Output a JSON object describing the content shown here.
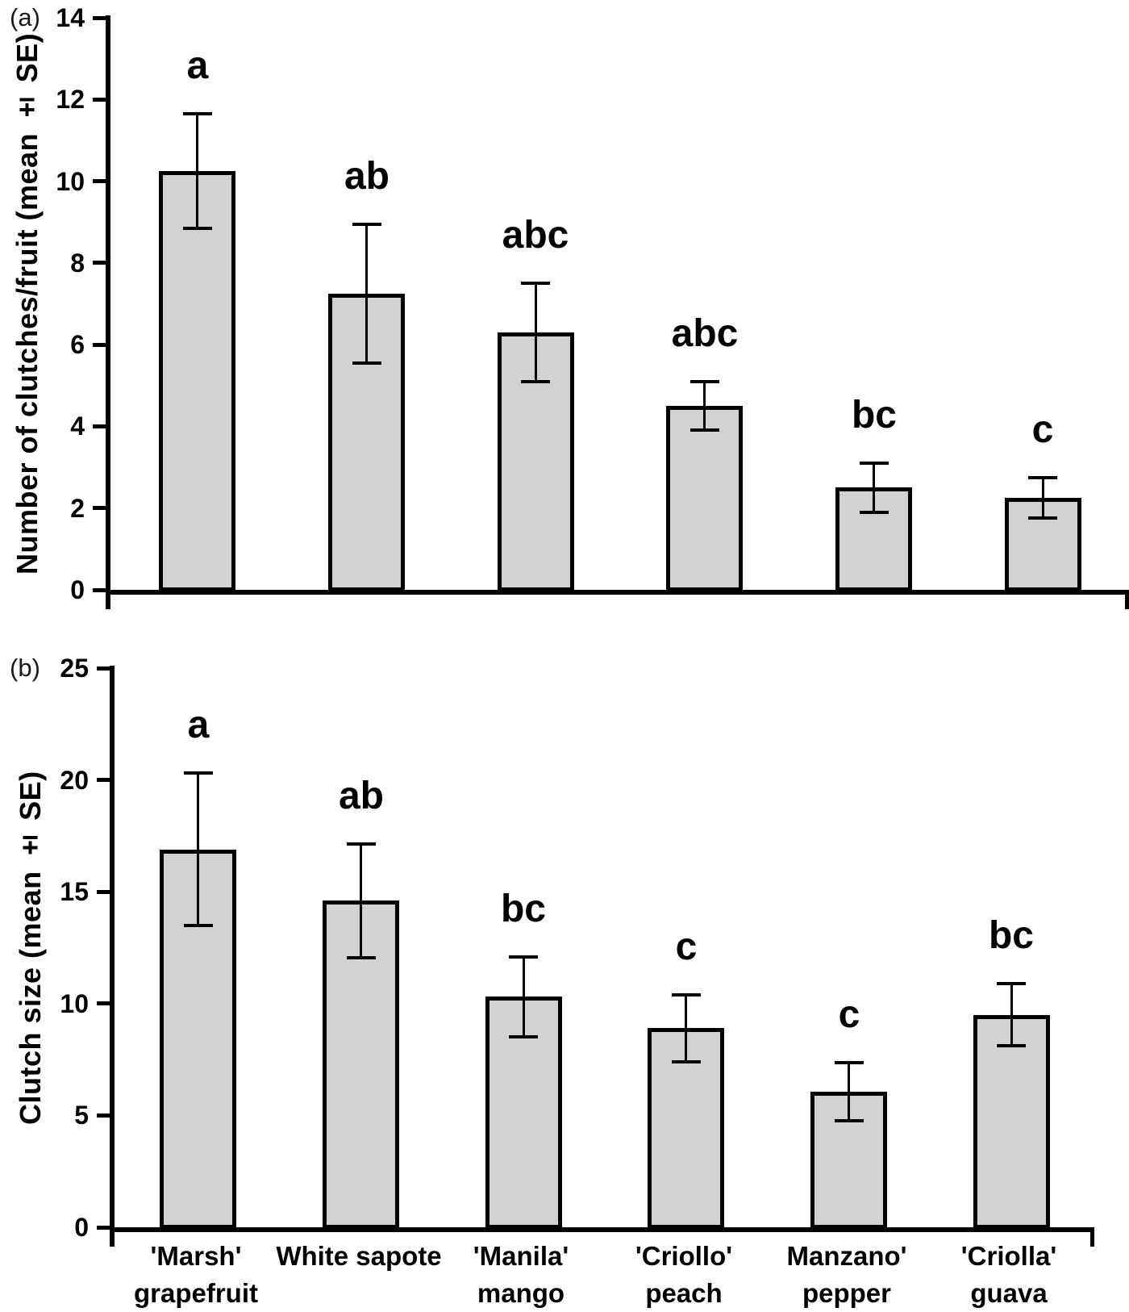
{
  "chart_data": [
    {
      "type": "bar",
      "panel_label": "(a)",
      "ylabel": "Number of clutches/fruit (mean ± SE)",
      "xlabel": "",
      "ylim": [
        0,
        14
      ],
      "yticks": [
        0,
        2,
        4,
        6,
        8,
        10,
        12,
        14
      ],
      "grid": false,
      "legend_position": "none",
      "bar_fill": "#d2d2d2",
      "bar_border": "#000000",
      "categories": [
        "'Marsh' grapefruit",
        "White sapote",
        "'Manila' mango",
        "'Criollo' peach",
        "Manzano' pepper",
        "'Criolla' guava"
      ],
      "series": [
        {
          "name": "Number of clutches per fruit (mean)",
          "values": [
            10.25,
            7.25,
            6.3,
            4.5,
            2.5,
            2.25
          ],
          "se": [
            1.4,
            1.7,
            1.2,
            0.6,
            0.6,
            0.5
          ]
        }
      ],
      "sig_letters": [
        "a",
        "ab",
        "abc",
        "abc",
        "bc",
        "c"
      ]
    },
    {
      "type": "bar",
      "panel_label": "(b)",
      "ylabel": "Clutch size (mean ± SE)",
      "xlabel": "",
      "ylim": [
        0,
        25
      ],
      "yticks": [
        0,
        5,
        10,
        15,
        20,
        25
      ],
      "grid": false,
      "legend_position": "none",
      "bar_fill": "#d2d2d2",
      "bar_border": "#000000",
      "categories": [
        "'Marsh' grapefruit",
        "White sapote",
        "'Manila' mango",
        "'Criollo' peach",
        "Manzano' pepper",
        "'Criolla' guava"
      ],
      "series": [
        {
          "name": "Clutch size (mean)",
          "values": [
            16.9,
            14.6,
            10.3,
            8.9,
            6.05,
            9.5
          ],
          "se": [
            3.4,
            2.55,
            1.8,
            1.5,
            1.3,
            1.4
          ]
        }
      ],
      "sig_letters": [
        "a",
        "ab",
        "bc",
        "c",
        "c",
        "bc"
      ]
    }
  ],
  "category_axis_labels": [
    [
      "'Marsh'",
      "grapefruit"
    ],
    [
      "White sapote"
    ],
    [
      "'Manila'",
      "mango"
    ],
    [
      "'Criollo'",
      "peach"
    ],
    [
      "Manzano'",
      "pepper"
    ],
    [
      "'Criolla'",
      "guava"
    ]
  ],
  "category_slugs": [
    "marsh-grapefruit",
    "white-sapote",
    "manila-mango",
    "criollo-peach",
    "manzano-pepper",
    "criolla-guava"
  ]
}
